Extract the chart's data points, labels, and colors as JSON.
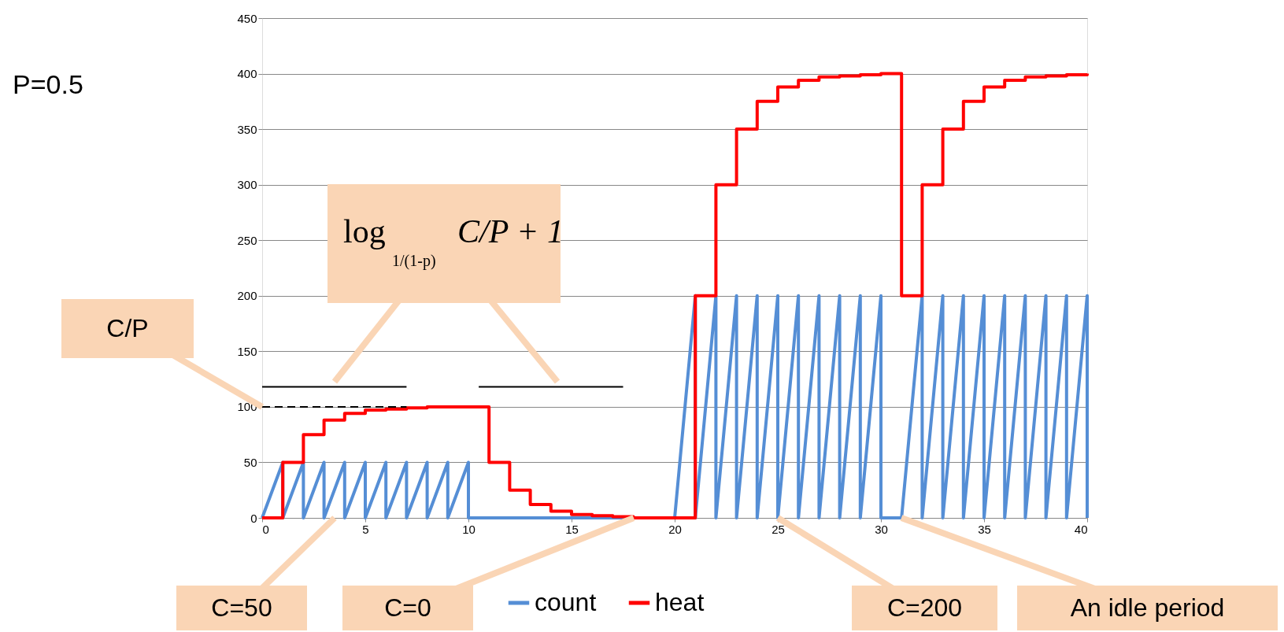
{
  "chart_data": {
    "type": "line",
    "xlim": [
      0,
      40
    ],
    "ylim": [
      0,
      450
    ],
    "xticks": [
      0,
      5,
      10,
      15,
      20,
      25,
      30,
      35,
      40
    ],
    "yticks": [
      0,
      50,
      100,
      150,
      200,
      250,
      300,
      350,
      400,
      450
    ],
    "grid": "y",
    "legend": "bottom",
    "series": [
      {
        "name": "count",
        "color": "#558ed5",
        "x": [
          0,
          1,
          1,
          2,
          2,
          3,
          3,
          4,
          4,
          5,
          5,
          6,
          6,
          7,
          7,
          8,
          8,
          9,
          9,
          10,
          10,
          20,
          21,
          21,
          22,
          22,
          23,
          23,
          24,
          24,
          25,
          25,
          26,
          26,
          27,
          27,
          28,
          28,
          29,
          29,
          30,
          30,
          31,
          32,
          32,
          33,
          33,
          34,
          34,
          35,
          35,
          36,
          36,
          37,
          37,
          38,
          38,
          39,
          39,
          40,
          40
        ],
        "values": [
          0,
          50,
          0,
          50,
          0,
          50,
          0,
          50,
          0,
          50,
          0,
          50,
          0,
          50,
          0,
          50,
          0,
          50,
          0,
          50,
          0,
          0,
          200,
          0,
          200,
          0,
          200,
          0,
          200,
          0,
          200,
          0,
          200,
          0,
          200,
          0,
          200,
          0,
          200,
          0,
          200,
          0,
          0,
          200,
          0,
          200,
          0,
          200,
          0,
          200,
          0,
          200,
          0,
          200,
          0,
          200,
          0,
          200,
          0,
          200,
          0
        ]
      },
      {
        "name": "heat",
        "type": "step",
        "color": "#ff0000",
        "x": [
          0,
          1,
          2,
          3,
          4,
          5,
          6,
          7,
          8,
          9,
          10,
          11,
          12,
          13,
          14,
          15,
          16,
          17,
          18,
          19,
          20,
          21,
          22,
          23,
          24,
          25,
          26,
          27,
          28,
          29,
          30,
          31,
          32,
          33,
          34,
          35,
          36,
          37,
          38,
          39,
          40
        ],
        "values": [
          0,
          50,
          75,
          88,
          94,
          97,
          98,
          99,
          100,
          100,
          100,
          50,
          25,
          12,
          6,
          3,
          2,
          1,
          0,
          0,
          0,
          200,
          300,
          350,
          375,
          388,
          394,
          397,
          398,
          399,
          400,
          200,
          300,
          350,
          375,
          388,
          394,
          397,
          398,
          399,
          400
        ]
      },
      {
        "type": "line",
        "color": "#000000",
        "line_style": "dashed",
        "x": [
          0,
          7
        ],
        "values": [
          100,
          100
        ]
      },
      {
        "type": "line",
        "color": "#000000",
        "x": [
          0,
          7
        ],
        "values": [
          118,
          118
        ]
      },
      {
        "type": "line",
        "color": "#000000",
        "x": [
          10.5,
          17.5
        ],
        "values": [
          118,
          118
        ]
      }
    ],
    "annotations": [
      "P=0.5",
      "C/P",
      "log$_{1/(1-p)}$ C/P + 1",
      "C=50",
      "C=0",
      "C=200",
      "An idle period"
    ]
  }
}
